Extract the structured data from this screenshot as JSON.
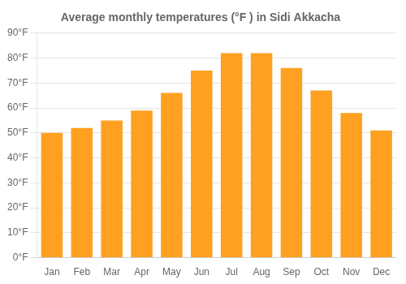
{
  "chart_data": {
    "type": "bar",
    "title": "Average monthly temperatures (°F ) in Sidi Akkacha",
    "categories": [
      "Jan",
      "Feb",
      "Mar",
      "Apr",
      "May",
      "Jun",
      "Jul",
      "Aug",
      "Sep",
      "Oct",
      "Nov",
      "Dec"
    ],
    "values": [
      50,
      52,
      55,
      59,
      66,
      75,
      82,
      82,
      76,
      67,
      58,
      51
    ],
    "color": "#FFA020",
    "ylim": [
      0,
      90
    ],
    "yticks": [
      {
        "value": 0,
        "label": "0°F"
      },
      {
        "value": 10,
        "label": "10°F"
      },
      {
        "value": 20,
        "label": "20°F"
      },
      {
        "value": 30,
        "label": "30°F"
      },
      {
        "value": 40,
        "label": "40°F"
      },
      {
        "value": 50,
        "label": "50°F"
      },
      {
        "value": 60,
        "label": "60°F"
      },
      {
        "value": 70,
        "label": "70°F"
      },
      {
        "value": 80,
        "label": "80°F"
      },
      {
        "value": 90,
        "label": "90°F"
      }
    ],
    "grid": true
  }
}
